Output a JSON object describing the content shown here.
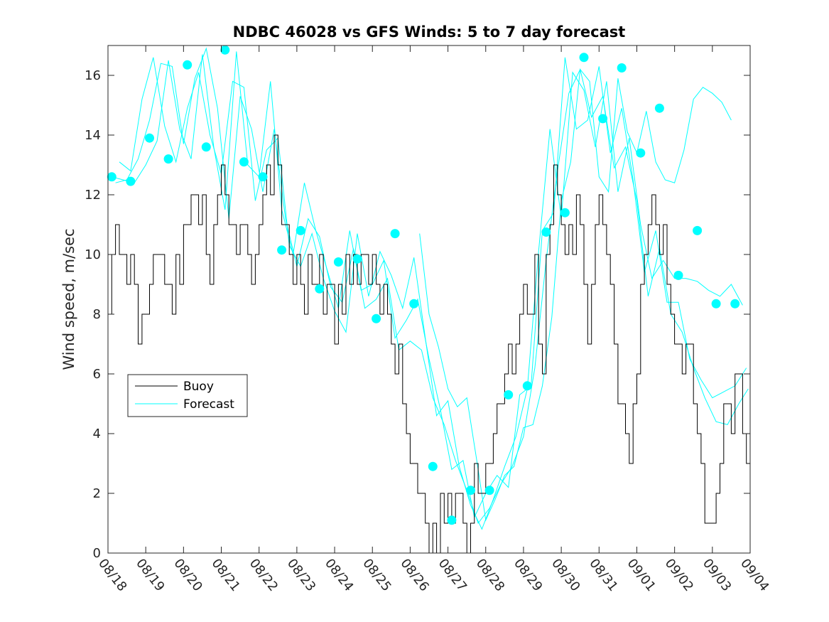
{
  "chart_data": {
    "type": "line",
    "title": "NDBC 46028 vs GFS Winds: 5 to 7 day forecast",
    "xlabel": "",
    "ylabel": "Wind speed, m/sec",
    "xlim": [
      0,
      17
    ],
    "ylim": [
      0,
      17
    ],
    "grid": false,
    "legend_position": "middle-left",
    "x_tick_labels": [
      "08/18",
      "08/19",
      "08/20",
      "08/21",
      "08/22",
      "08/23",
      "08/24",
      "08/25",
      "08/26",
      "08/27",
      "08/28",
      "08/29",
      "08/30",
      "08/31",
      "09/01",
      "09/02",
      "09/03",
      "09/04"
    ],
    "y_ticks": [
      0,
      2,
      4,
      6,
      8,
      10,
      12,
      14,
      16
    ],
    "colors": {
      "buoy": "#000000",
      "forecast": "#00ffff"
    },
    "series": [
      {
        "name": "Buoy",
        "x": [
          0,
          0.1,
          0.2,
          0.3,
          0.4,
          0.5,
          0.6,
          0.7,
          0.8,
          0.9,
          1.0,
          1.1,
          1.2,
          1.3,
          1.4,
          1.5,
          1.6,
          1.7,
          1.8,
          1.9,
          2.0,
          2.1,
          2.2,
          2.3,
          2.4,
          2.5,
          2.6,
          2.7,
          2.8,
          2.9,
          3.0,
          3.1,
          3.2,
          3.3,
          3.4,
          3.5,
          3.6,
          3.7,
          3.8,
          3.9,
          4.0,
          4.1,
          4.2,
          4.3,
          4.4,
          4.5,
          4.6,
          4.7,
          4.8,
          4.9,
          5.0,
          5.1,
          5.2,
          5.3,
          5.4,
          5.5,
          5.6,
          5.7,
          5.8,
          5.9,
          6.0,
          6.1,
          6.2,
          6.3,
          6.4,
          6.5,
          6.6,
          6.7,
          6.8,
          6.9,
          7.0,
          7.1,
          7.2,
          7.3,
          7.4,
          7.5,
          7.6,
          7.7,
          7.8,
          7.9,
          8.0,
          8.1,
          8.2,
          8.3,
          8.4,
          8.5,
          8.6,
          8.7,
          8.8,
          8.9,
          9.0,
          9.1,
          9.2,
          9.3,
          9.4,
          9.5,
          9.6,
          9.7,
          9.8,
          9.9,
          10.0,
          10.1,
          10.2,
          10.3,
          10.4,
          10.5,
          10.6,
          10.7,
          10.8,
          10.9,
          11.0,
          11.1,
          11.2,
          11.3,
          11.4,
          11.5,
          11.6,
          11.7,
          11.8,
          11.9,
          12.0,
          12.1,
          12.2,
          12.3,
          12.4,
          12.5,
          12.6,
          12.7,
          12.8,
          12.9,
          13.0,
          13.1,
          13.2,
          13.3,
          13.4,
          13.5,
          13.6,
          13.7,
          13.8,
          13.9,
          14.0,
          14.1,
          14.2,
          14.3,
          14.4,
          14.5,
          14.6,
          14.7,
          14.8,
          14.9,
          15.0,
          15.1,
          15.2,
          15.3,
          15.4,
          15.5,
          15.6,
          15.7,
          15.8,
          15.9,
          16.0,
          16.1,
          16.2,
          16.3,
          16.4,
          16.5,
          16.6,
          16.7,
          16.8,
          16.9,
          17.0
        ],
        "values": [
          8,
          10,
          11,
          10,
          10,
          9,
          10,
          9,
          7,
          8,
          8,
          9,
          10,
          10,
          10,
          9,
          9,
          8,
          10,
          9,
          11,
          11,
          12,
          12,
          11,
          12,
          10,
          9,
          11,
          12,
          13,
          12,
          11,
          11,
          10,
          11,
          11,
          10,
          9,
          10,
          11,
          12,
          13,
          12,
          14,
          13,
          11,
          11,
          10,
          9,
          10,
          9,
          8,
          10,
          9,
          9,
          10,
          8,
          9,
          9,
          7,
          9,
          8,
          10,
          9,
          10,
          9,
          10,
          10,
          9,
          10,
          9,
          8,
          9,
          8,
          7,
          6,
          7,
          5,
          4,
          3,
          3,
          2,
          2,
          1,
          0,
          1,
          0,
          2,
          1,
          2,
          1,
          2,
          2,
          1,
          0,
          1,
          3,
          2,
          2,
          3,
          3,
          4,
          5,
          5,
          6,
          7,
          6,
          7,
          8,
          9,
          8,
          8,
          10,
          7,
          6,
          10,
          11,
          13,
          12,
          11,
          10,
          11,
          10,
          12,
          11,
          9,
          7,
          9,
          11,
          12,
          11,
          10,
          9,
          7,
          5,
          5,
          4,
          3,
          5,
          6,
          9,
          10,
          11,
          12,
          11,
          10,
          11,
          9,
          8,
          7,
          7,
          6,
          7,
          7,
          5,
          4,
          3,
          1,
          1,
          1,
          2,
          3,
          5,
          5,
          4,
          6,
          6,
          4,
          3,
          3
        ]
      },
      {
        "name": "Forecast",
        "note": "ensemble of forecast runs (thin lines) with run-start markers (filled circles)",
        "lines": [
          {
            "x": [
              0.1,
              0.4,
              0.7,
              1.0,
              1.3,
              1.6,
              1.9,
              2.2,
              2.5,
              2.8,
              3.1,
              3.4,
              3.7,
              4.0,
              4.3,
              4.6,
              4.9,
              5.2,
              5.5,
              5.8,
              6.1,
              6.4,
              6.7,
              7.0,
              7.3,
              7.6,
              7.9,
              8.2,
              8.5,
              8.8,
              9.1,
              9.4,
              9.7,
              10.0,
              10.3,
              10.6,
              10.9,
              11.2,
              11.5,
              11.8,
              12.1,
              12.4,
              12.7,
              13.0,
              13.3,
              13.6,
              13.9,
              14.2,
              14.5,
              14.8,
              15.1,
              15.4,
              15.7,
              16.0,
              16.3,
              16.6,
              16.9
            ],
            "values": [
              12.6,
              12.5,
              12.4,
              13,
              13.8,
              16.5,
              14.2,
              13.2,
              16.7,
              13.6,
              11.5,
              16.8,
              13,
              12.6,
              15.8,
              11.5,
              10,
              12.4,
              10.8,
              9.5,
              8.2,
              10.8,
              8.8,
              9,
              9.8,
              7.2,
              7.8,
              8.5,
              6.5,
              4.8,
              2.8,
              3.1,
              1.2,
              2,
              2.6,
              2.2,
              5.3,
              5.6,
              10.8,
              11.4,
              16.6,
              14.2,
              14.5,
              16.3,
              13.4,
              14.9,
              12.5,
              9.4,
              10.8,
              8.4,
              8.4,
              6.5,
              5.8,
              5.2,
              5.4,
              5.6,
              6.2
            ]
          },
          {
            "x": [
              0.2,
              0.5,
              0.8,
              1.1,
              1.4,
              1.7,
              2.0,
              2.3,
              2.6,
              2.9,
              3.2,
              3.5,
              3.8,
              4.1,
              4.4,
              4.7,
              5.0,
              5.3,
              5.6,
              5.9,
              6.2,
              6.5,
              6.8,
              7.1,
              7.4,
              7.7,
              8.0,
              8.3,
              8.6,
              8.9,
              9.2,
              9.5,
              9.8,
              10.1,
              10.4,
              10.7,
              11.0,
              11.3,
              11.6,
              11.9,
              12.2,
              12.5,
              12.8,
              13.1,
              13.4,
              13.7,
              14.0,
              14.3,
              14.6,
              14.9,
              15.2,
              15.5,
              15.8,
              16.1,
              16.4,
              16.7,
              16.95
            ],
            "values": [
              12.4,
              12.5,
              13.2,
              14.5,
              16.4,
              16.3,
              13.7,
              15.9,
              16.9,
              14.9,
              11.2,
              15.3,
              14.2,
              12.1,
              14.2,
              11.2,
              9.6,
              11.2,
              10.6,
              8.9,
              8.4,
              10.2,
              8.2,
              8.5,
              9.2,
              6.8,
              7.1,
              6.8,
              5.2,
              4.3,
              3.1,
              2.1,
              1.0,
              1.5,
              2.3,
              2.9,
              3.9,
              6.2,
              9.8,
              12.8,
              15.4,
              16.2,
              14.6,
              15.3,
              12.9,
              13.6,
              11.8,
              8.6,
              10.2,
              8.0,
              7.4,
              6.2,
              5.2,
              4.4,
              4.3,
              5.0,
              5.5
            ]
          },
          {
            "x": [
              0.3,
              0.6,
              0.9,
              1.2,
              1.5,
              1.8,
              2.1,
              2.4,
              2.7,
              3.0,
              3.3,
              3.6,
              3.9,
              4.2,
              4.5,
              4.8,
              5.1,
              5.4,
              5.7,
              6.0,
              6.3,
              6.6,
              6.9,
              7.2,
              7.5,
              7.8,
              8.1,
              8.4,
              8.7,
              9.0,
              9.3,
              9.6,
              9.9,
              10.2,
              10.5,
              10.8,
              11.1,
              11.4,
              11.7,
              12.0,
              12.3,
              12.6,
              12.9,
              13.2,
              13.5,
              13.8,
              14.1,
              14.4,
              14.7,
              15.0,
              15.3,
              15.6,
              15.9,
              16.2,
              16.5,
              16.8
            ],
            "values": [
              13.1,
              12.8,
              15.2,
              16.6,
              14.3,
              13.1,
              14.9,
              16.1,
              14.0,
              12.7,
              15.8,
              15.6,
              11.8,
              13.5,
              13.9,
              10.3,
              9.6,
              10.7,
              9.2,
              8.1,
              7.4,
              10.7,
              8.6,
              10.1,
              9.3,
              8.2,
              9.9,
              7.2,
              4.6,
              5.1,
              2.9,
              1.6,
              0.8,
              1.8,
              2.9,
              3.9,
              5.5,
              10.1,
              14.2,
              11.2,
              16.1,
              15.5,
              13.6,
              15.8,
              12.1,
              13.9,
              11.0,
              9.2,
              9.8,
              9.2,
              9.2,
              9.1,
              8.8,
              8.6,
              9.0,
              8.3
            ]
          },
          {
            "x": [
              8.25,
              8.5,
              8.75,
              9.0,
              9.25,
              9.5,
              9.75,
              10.0,
              10.25,
              10.5,
              10.75,
              11.0,
              11.25,
              11.5,
              11.75,
              12.0,
              12.25,
              12.5,
              12.75,
              13.0,
              13.25,
              13.5,
              13.75,
              14.0,
              14.25,
              14.5,
              14.75,
              15.0,
              15.25,
              15.5,
              15.75,
              16.0,
              16.25,
              16.5
            ],
            "values": [
              10.7,
              8.0,
              6.9,
              5.5,
              4.9,
              5.2,
              3.2,
              1.1,
              1.8,
              2.6,
              2.9,
              4.2,
              4.3,
              5.6,
              7.9,
              11.8,
              13.1,
              16.2,
              15.8,
              12.6,
              12.1,
              15.9,
              14.1,
              13.4,
              14.8,
              13.1,
              12.5,
              12.4,
              13.5,
              15.2,
              15.6,
              15.4,
              15.1,
              14.5
            ]
          }
        ],
        "markers": {
          "x": [
            0.1,
            0.6,
            1.1,
            1.6,
            2.1,
            2.6,
            3.1,
            3.6,
            4.1,
            4.6,
            5.1,
            5.6,
            6.1,
            6.6,
            7.1,
            7.6,
            8.1,
            8.6,
            9.1,
            9.6,
            10.1,
            10.6,
            11.1,
            11.6,
            12.1,
            12.6,
            13.1,
            13.6,
            14.1,
            14.6,
            15.1,
            15.6,
            16.1,
            16.6
          ],
          "values": [
            12.6,
            12.45,
            13.9,
            13.2,
            16.35,
            13.6,
            16.85,
            13.1,
            12.6,
            10.15,
            10.8,
            8.85,
            9.75,
            9.85,
            7.85,
            10.7,
            8.35,
            2.9,
            1.1,
            2.1,
            2.1,
            5.3,
            5.6,
            10.75,
            11.4,
            16.6,
            14.55,
            16.25,
            13.4,
            14.9,
            9.3,
            10.8,
            8.35,
            8.35
          ]
        }
      }
    ]
  }
}
